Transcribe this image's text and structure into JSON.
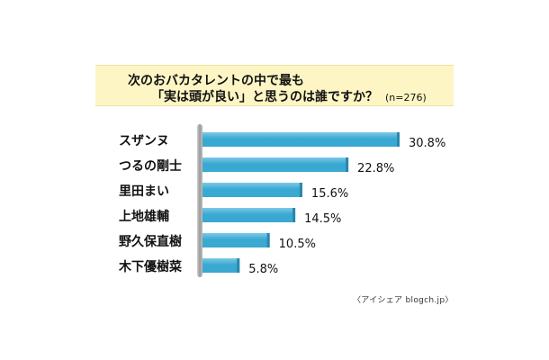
{
  "title": {
    "line1": "次のおバカタレントの中で最も",
    "line2": "「実は頭が良い」と思うのは誰ですか？",
    "n": "(n=276)"
  },
  "source": "〈アイシェア blogch.jp〉",
  "colors": {
    "bar": "#3aa9d2",
    "bar_top": "#7cc8e6",
    "axis": "#a8a8a8",
    "title_bg": "#fdf6c4"
  },
  "chart_data": {
    "type": "bar",
    "orientation": "horizontal",
    "categories": [
      "スザンヌ",
      "つるの剛士",
      "里田まい",
      "上地雄輔",
      "野久保直樹",
      "木下優樹菜"
    ],
    "values": [
      30.8,
      22.8,
      15.6,
      14.5,
      10.5,
      5.8
    ],
    "value_labels": [
      "30.8%",
      "22.8%",
      "15.6%",
      "14.5%",
      "10.5%",
      "5.8%"
    ],
    "xlim": [
      0,
      30.8
    ],
    "grid": false,
    "legend": "none"
  }
}
